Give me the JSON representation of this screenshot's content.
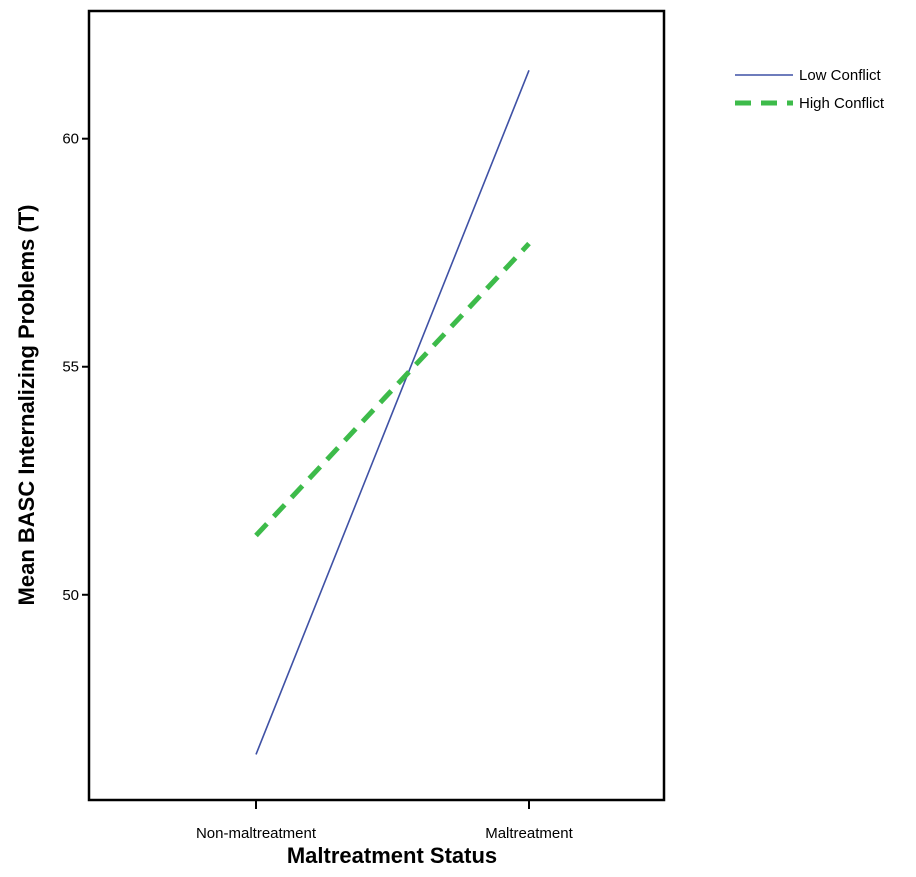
{
  "chart_data": {
    "type": "line",
    "title": "",
    "xlabel": "Maltreatment Status",
    "ylabel": "Mean BASC Internalizing Problems (T)",
    "categories": [
      "Non-maltreatment",
      "Maltreatment"
    ],
    "ylim": [
      45.5,
      62.8
    ],
    "yticks": [
      50,
      55,
      60
    ],
    "grid": false,
    "legend_position": "top-right, outside plot",
    "series": [
      {
        "name": "Low Conflict",
        "values": [
          46.5,
          61.5
        ],
        "color": "#3f51a5",
        "line_style": "solid"
      },
      {
        "name": "High Conflict",
        "values": [
          51.3,
          57.7
        ],
        "color": "#3dbb4a",
        "line_style": "dashed"
      }
    ]
  }
}
